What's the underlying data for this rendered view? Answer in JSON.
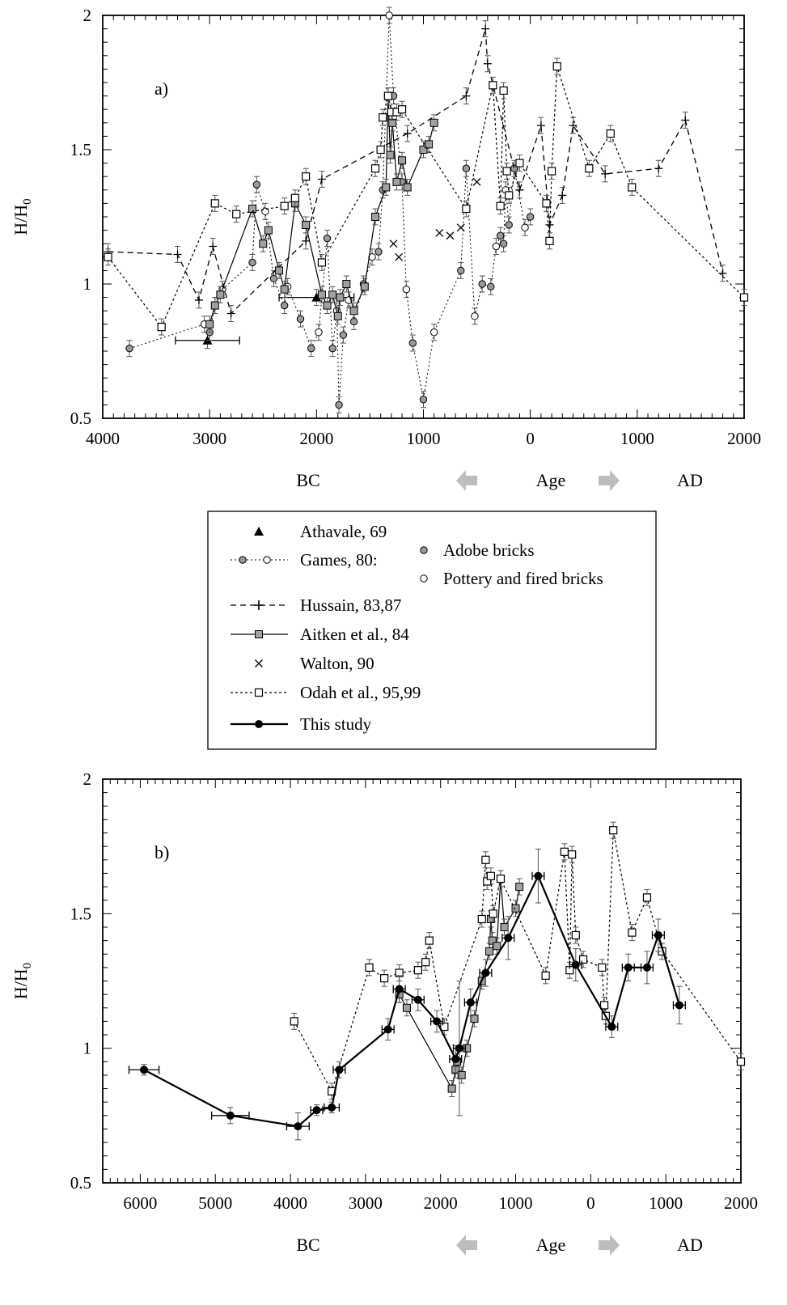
{
  "chart_data": [
    {
      "type": "scatter",
      "panel_label": "a)",
      "ylabel": "H/H",
      "ylabel_sub": "0",
      "xlim": [
        -4000,
        2000
      ],
      "ylim": [
        0.5,
        2
      ],
      "x_ticks": [
        -4000,
        -3000,
        -2000,
        -1000,
        0,
        1000,
        2000
      ],
      "x_tick_labels": [
        "4000",
        "3000",
        "2000",
        "1000",
        "0",
        "1000",
        "2000"
      ],
      "y_ticks": [
        0.5,
        1,
        1.5,
        2
      ],
      "y_tick_labels": [
        "0.5",
        "1",
        "1.5",
        "2"
      ],
      "bc_label": "BC",
      "age_label": "Age",
      "ad_label": "AD",
      "series": [
        {
          "name": "Athavale, 69",
          "style": "athavale",
          "x": [
            -3020,
            -2000
          ],
          "y": [
            0.79,
            0.95
          ],
          "xerr": [
            300,
            350
          ]
        },
        {
          "name": "Games, 80",
          "style": "games",
          "x": [
            -3750,
            -3050,
            -3000,
            -2950,
            -2880,
            -2600,
            -2560,
            -2480,
            -2400,
            -2300,
            -2270,
            -2150,
            -2050,
            -1980,
            -1900,
            -1850,
            -1810,
            -1790,
            -1750,
            -1700,
            -1650,
            -1560,
            -1480,
            -1420,
            -1380,
            -1320,
            -1280,
            -1200,
            -1160,
            -1100,
            -1000,
            -900,
            -650,
            -600,
            -520,
            -450,
            -370,
            -320,
            -280,
            -250,
            -230,
            -200,
            -150,
            -50,
            0
          ],
          "y": [
            0.76,
            0.85,
            0.82,
            0.92,
            0.98,
            1.08,
            1.37,
            1.27,
            1.02,
            0.92,
            0.99,
            0.87,
            0.76,
            0.82,
            1.17,
            0.76,
            0.9,
            0.55,
            0.81,
            0.94,
            0.86,
            1.0,
            1.1,
            1.12,
            1.35,
            2.0,
            1.7,
            1.38,
            0.98,
            0.78,
            0.57,
            0.82,
            1.05,
            1.43,
            0.88,
            1.0,
            0.99,
            1.14,
            1.18,
            1.15,
            1.35,
            1.22,
            1.43,
            1.21,
            1.25
          ]
        },
        {
          "name": "Hussain, 83,87",
          "style": "hussain",
          "x": [
            -3950,
            -3300,
            -3100,
            -2970,
            -2800,
            -2100,
            -1950,
            -1150,
            -600,
            -420,
            -400,
            -100,
            100,
            180,
            300,
            400,
            700,
            1200,
            1450,
            1800
          ],
          "y": [
            1.12,
            1.11,
            0.94,
            1.14,
            0.89,
            1.16,
            1.39,
            1.56,
            1.7,
            1.95,
            1.82,
            1.35,
            1.59,
            1.22,
            1.33,
            1.59,
            1.41,
            1.43,
            1.61,
            1.04
          ]
        },
        {
          "name": "Aitken et al., 84",
          "style": "aitken",
          "x": [
            -3000,
            -2950,
            -2900,
            -2600,
            -2500,
            -2450,
            -2350,
            -2300,
            -2200,
            -2100,
            -1950,
            -1900,
            -1850,
            -1800,
            -1780,
            -1720,
            -1650,
            -1550,
            -1450,
            -1350,
            -1330,
            -1310,
            -1290,
            -1250,
            -1200,
            -1150,
            -1000,
            -950,
            -900
          ],
          "y": [
            0.85,
            0.92,
            0.96,
            1.28,
            1.15,
            1.2,
            1.05,
            0.98,
            1.3,
            1.22,
            0.96,
            0.92,
            0.96,
            0.88,
            0.95,
            1.0,
            0.9,
            0.99,
            1.25,
            1.36,
            1.7,
            1.48,
            1.6,
            1.38,
            1.46,
            1.36,
            1.5,
            1.52,
            1.6
          ]
        },
        {
          "name": "Walton, 90",
          "style": "walton",
          "x": [
            -1230,
            -1280,
            -850,
            -750,
            -650,
            -500
          ],
          "y": [
            1.1,
            1.15,
            1.19,
            1.18,
            1.21,
            1.38
          ]
        },
        {
          "name": "Odah et al., 95,99",
          "style": "odah",
          "x": [
            -3950,
            -3450,
            -2950,
            -2750,
            -2300,
            -2200,
            -2100,
            -1950,
            -1450,
            -1400,
            -1380,
            -1330,
            -1300,
            -1250,
            -1200,
            -600,
            -350,
            -280,
            -250,
            -220,
            -200,
            -100,
            150,
            180,
            200,
            250,
            550,
            750,
            950,
            2000
          ],
          "y": [
            1.1,
            0.84,
            1.3,
            1.26,
            1.29,
            1.32,
            1.4,
            1.08,
            1.43,
            1.5,
            1.62,
            1.7,
            1.64,
            1.64,
            1.65,
            1.28,
            1.74,
            1.29,
            1.72,
            1.42,
            1.33,
            1.45,
            1.3,
            1.16,
            1.42,
            1.81,
            1.43,
            1.56,
            1.36,
            0.95
          ]
        }
      ],
      "legend": {
        "placement": "below panel a",
        "entries": [
          {
            "label": "Athavale, 69",
            "style": "athavale"
          },
          {
            "label": "Games, 80:",
            "style": "games"
          },
          {
            "label": "Hussain, 83,87",
            "style": "hussain"
          },
          {
            "label": "Aitken et al., 84",
            "style": "aitken"
          },
          {
            "label": "Walton, 90",
            "style": "walton"
          },
          {
            "label": "Odah et al., 95,99",
            "style": "odah"
          },
          {
            "label": "This study",
            "style": "study"
          }
        ],
        "games_sub": [
          {
            "label": "Adobe bricks",
            "marker": "filled-circle"
          },
          {
            "label": "Pottery and fired bricks",
            "marker": "open-circle"
          }
        ]
      }
    },
    {
      "type": "scatter",
      "panel_label": "b)",
      "ylabel": "H/H",
      "ylabel_sub": "0",
      "xlim": [
        -6500,
        2000
      ],
      "ylim": [
        0.5,
        2
      ],
      "x_ticks": [
        -6000,
        -5000,
        -4000,
        -3000,
        -2000,
        -1000,
        0,
        1000,
        2000
      ],
      "x_tick_labels": [
        "6000",
        "5000",
        "4000",
        "3000",
        "2000",
        "1000",
        "0",
        "1000",
        "2000"
      ],
      "y_ticks": [
        0.5,
        1,
        1.5,
        2
      ],
      "y_tick_labels": [
        "0.5",
        "1",
        "1.5",
        "2"
      ],
      "bc_label": "BC",
      "age_label": "Age",
      "ad_label": "AD",
      "series": [
        {
          "name": "Aitken et al., 84",
          "style": "aitken",
          "x": [
            -2550,
            -2450,
            -1850,
            -1800,
            -1780,
            -1720,
            -1650,
            -1550,
            -1450,
            -1350,
            -1330,
            -1310,
            -1250,
            -1200,
            -1150,
            -1000,
            -950
          ],
          "y": [
            1.2,
            1.15,
            0.85,
            0.92,
            0.95,
            0.9,
            1.0,
            1.11,
            1.25,
            1.36,
            1.48,
            1.4,
            1.38,
            1.63,
            1.45,
            1.52,
            1.6
          ]
        },
        {
          "name": "Odah et al., 95,99",
          "style": "odah",
          "x": [
            -3950,
            -3450,
            -2950,
            -2750,
            -2550,
            -2300,
            -2200,
            -2150,
            -1950,
            -1450,
            -1400,
            -1380,
            -1330,
            -1300,
            -1200,
            -600,
            -350,
            -280,
            -250,
            -200,
            -100,
            150,
            180,
            200,
            300,
            550,
            750,
            950,
            2000
          ],
          "y": [
            1.1,
            0.84,
            1.3,
            1.26,
            1.28,
            1.29,
            1.32,
            1.4,
            1.08,
            1.48,
            1.7,
            1.62,
            1.64,
            1.5,
            1.63,
            1.27,
            1.73,
            1.29,
            1.72,
            1.42,
            1.33,
            1.3,
            1.16,
            1.12,
            1.81,
            1.43,
            1.56,
            1.36,
            0.95
          ]
        },
        {
          "name": "This study",
          "style": "study",
          "x": [
            -5950,
            -4800,
            -3900,
            -3650,
            -3450,
            -3350,
            -2700,
            -2550,
            -2300,
            -2050,
            -1800,
            -1750,
            -1600,
            -1400,
            -1100,
            -700,
            -200,
            280,
            500,
            750,
            900,
            1180
          ],
          "y": [
            0.92,
            0.75,
            0.71,
            0.77,
            0.78,
            0.92,
            1.07,
            1.22,
            1.18,
            1.1,
            0.96,
            1.0,
            1.17,
            1.28,
            1.41,
            1.64,
            1.31,
            1.08,
            1.3,
            1.3,
            1.42,
            1.16
          ],
          "xerr": [
            200,
            250,
            150,
            80,
            100,
            80,
            80,
            80,
            80,
            80,
            80,
            80,
            80,
            80,
            80,
            80,
            80,
            80,
            80,
            80,
            80,
            80
          ],
          "yerr": [
            0.02,
            0.03,
            0.05,
            0.02,
            0.02,
            0.03,
            0.04,
            0.05,
            0.04,
            0.04,
            0.05,
            0.25,
            0.05,
            0.05,
            0.08,
            0.1,
            0.06,
            0.04,
            0.05,
            0.06,
            0.06,
            0.07
          ]
        }
      ]
    }
  ]
}
